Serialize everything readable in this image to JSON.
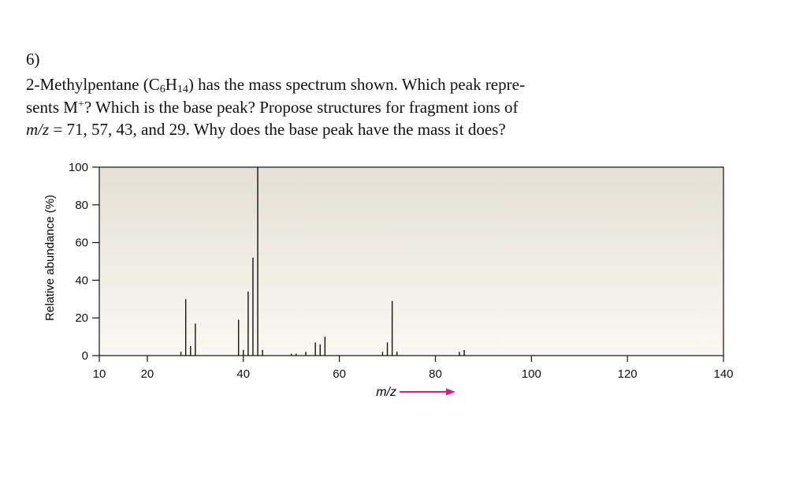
{
  "question": {
    "number": "6)",
    "compound": "2-Methylpentane (C",
    "sub1": "6",
    "h": "H",
    "sub2": "14",
    "line1_rest": ") has the mass spectrum shown. Which peak repre-",
    "line2_start": "sents M",
    "sup_plus": "+",
    "line2_rest": "? Which is the base peak? Propose structures for fragment ions of",
    "mz_italic": "m/z",
    "line3_rest": " = 71, 57, 43, and 29. Why does the base peak have the mass it does?"
  },
  "colors": {
    "plot_top": "#e4e0d5",
    "plot_bottom": "#faf8f2",
    "peak": "#111111",
    "arrow": "#e6197a"
  },
  "chart_data": {
    "type": "bar",
    "title": "",
    "xlabel": "m/z",
    "ylabel": "Relative abundance (%)",
    "xlim": [
      10,
      140
    ],
    "ylim": [
      0,
      100
    ],
    "x_ticks": [
      10,
      20,
      40,
      60,
      80,
      100,
      120,
      140
    ],
    "x_tick_labels": [
      "10",
      "20",
      "40",
      "60",
      "80",
      "100",
      "120",
      "140"
    ],
    "y_ticks": [
      0,
      20,
      40,
      60,
      80,
      100
    ],
    "y_tick_labels": [
      "0",
      "20",
      "40",
      "60",
      "80",
      "100"
    ],
    "grid": false,
    "legend": "none",
    "peaks": [
      {
        "mz": 27,
        "abundance": 2
      },
      {
        "mz": 28,
        "abundance": 30
      },
      {
        "mz": 29,
        "abundance": 5
      },
      {
        "mz": 30,
        "abundance": 17
      },
      {
        "mz": 39,
        "abundance": 19
      },
      {
        "mz": 40,
        "abundance": 3
      },
      {
        "mz": 41,
        "abundance": 34
      },
      {
        "mz": 42,
        "abundance": 52
      },
      {
        "mz": 43,
        "abundance": 100
      },
      {
        "mz": 44,
        "abundance": 3
      },
      {
        "mz": 50,
        "abundance": 1
      },
      {
        "mz": 51,
        "abundance": 1
      },
      {
        "mz": 53,
        "abundance": 2
      },
      {
        "mz": 55,
        "abundance": 7
      },
      {
        "mz": 56,
        "abundance": 6
      },
      {
        "mz": 57,
        "abundance": 10
      },
      {
        "mz": 69,
        "abundance": 2
      },
      {
        "mz": 70,
        "abundance": 7
      },
      {
        "mz": 71,
        "abundance": 29
      },
      {
        "mz": 72,
        "abundance": 2
      },
      {
        "mz": 85,
        "abundance": 2
      },
      {
        "mz": 86,
        "abundance": 3
      }
    ]
  }
}
